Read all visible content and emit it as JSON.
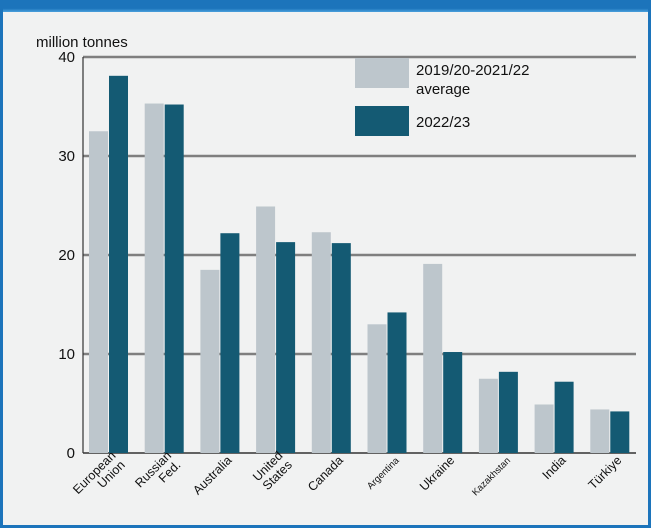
{
  "chart_data": {
    "type": "bar",
    "unit_label": "million tonnes",
    "categories": [
      "European Union",
      "Russian Fed.",
      "Australia",
      "United States",
      "Canada",
      "Argentina",
      "Ukraine",
      "Kazakhstan",
      "India",
      "Türkiye"
    ],
    "category_lines": [
      [
        "European",
        "Union"
      ],
      [
        "Russian",
        "Fed."
      ],
      [
        "Australia"
      ],
      [
        "United",
        "States"
      ],
      [
        "Canada"
      ],
      [
        "Argentina"
      ],
      [
        "Ukraine"
      ],
      [
        "Kazakhstan"
      ],
      [
        "India"
      ],
      [
        "Türkiye"
      ]
    ],
    "series": [
      {
        "name": "2019/20-2021/22 average",
        "legend_lines": [
          "2019/20-2021/22",
          "average"
        ],
        "color": "#bdc6cc",
        "values": [
          32.5,
          35.3,
          18.5,
          24.9,
          22.3,
          13.0,
          19.1,
          7.5,
          4.9,
          4.4
        ]
      },
      {
        "name": "2022/23",
        "legend_lines": [
          "2022/23"
        ],
        "color": "#145a73",
        "values": [
          38.1,
          35.2,
          22.2,
          21.3,
          21.2,
          14.2,
          10.2,
          8.2,
          7.2,
          4.2
        ]
      }
    ],
    "ylim": [
      0,
      40
    ],
    "yticks": [
      0,
      10,
      20,
      30,
      40
    ],
    "grid": true,
    "legend_position": "top-right",
    "colors": {
      "background": "#f1f2f2",
      "frame": "#1c74bb",
      "grid": "#7f7f7f"
    }
  }
}
